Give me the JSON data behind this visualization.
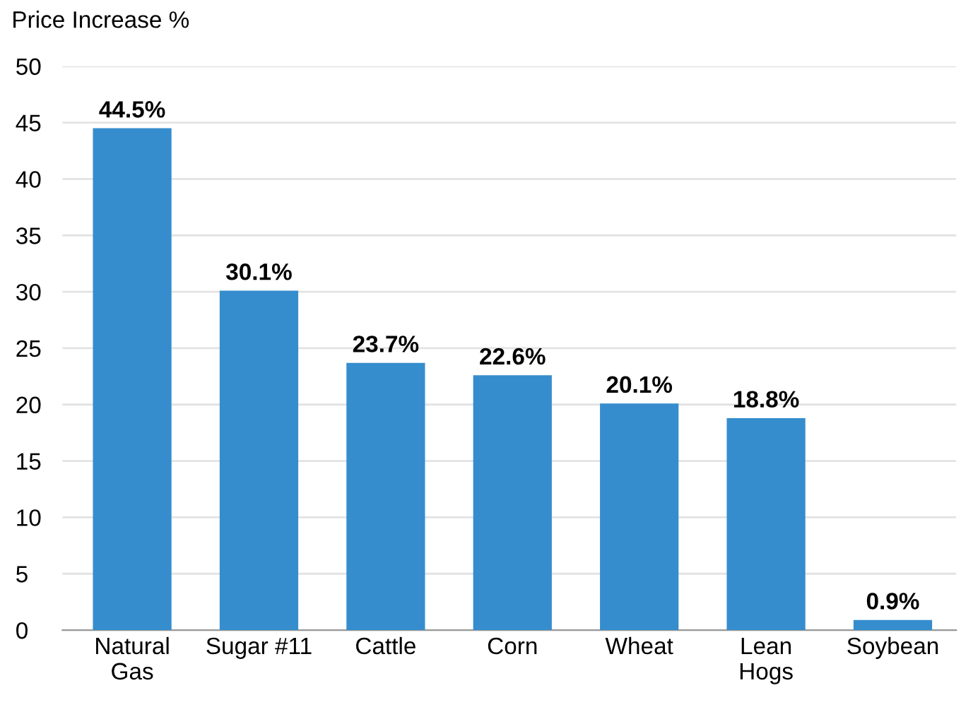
{
  "chart_data": {
    "type": "bar",
    "ylabel": "Price Increase %",
    "categories": [
      "Natural\nGas",
      "Sugar #11",
      "Cattle",
      "Corn",
      "Wheat",
      "Lean\nHogs",
      "Soybean"
    ],
    "values": [
      44.5,
      30.1,
      23.7,
      22.6,
      20.1,
      18.8,
      0.9
    ],
    "value_labels": [
      "44.5%",
      "30.1%",
      "23.7%",
      "22.6%",
      "20.1%",
      "18.8%",
      "0.9%"
    ],
    "color": "#358dcd",
    "ylim": [
      0,
      50
    ],
    "yticks": [
      0,
      5,
      10,
      15,
      20,
      25,
      30,
      35,
      40,
      45,
      50
    ],
    "grid": "y",
    "legend": false
  }
}
